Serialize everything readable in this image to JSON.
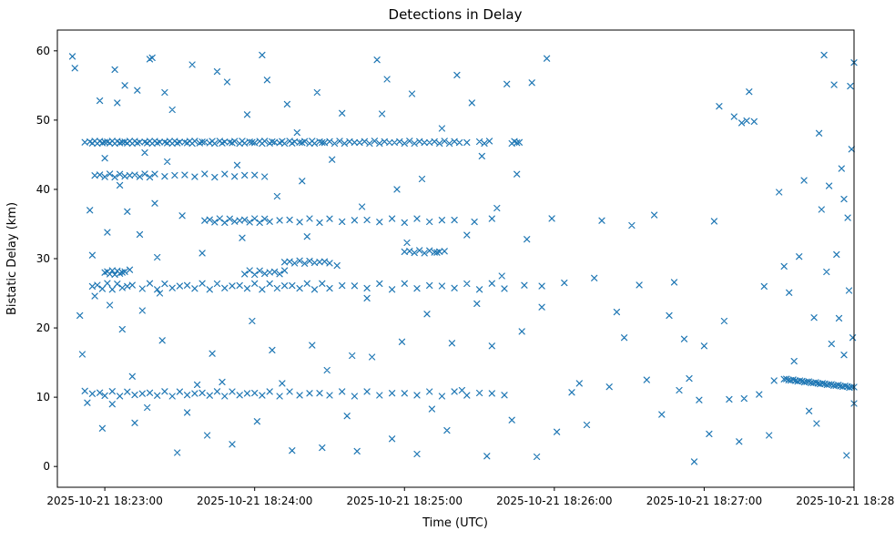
{
  "figure": {
    "background": "#ffffff"
  },
  "chart_data": {
    "type": "scatter",
    "title": "Detections in Delay",
    "xlabel": "Time (UTC)",
    "ylabel": "Bistatic Delay (km)",
    "marker": "x",
    "marker_color": "#1f77b4",
    "grid": false,
    "legend_position": "none",
    "x_axis_note": "seconds relative to 2025-10-21 18:23:00 UTC",
    "xlim_seconds": [
      -19,
      300
    ],
    "x_ticks": [
      {
        "t": 0,
        "label": "2025-10-21 18:23:00"
      },
      {
        "t": 60,
        "label": "2025-10-21 18:24:00"
      },
      {
        "t": 120,
        "label": "2025-10-21 18:25:00"
      },
      {
        "t": 180,
        "label": "2025-10-21 18:26:00"
      },
      {
        "t": 240,
        "label": "2025-10-21 18:27:00"
      },
      {
        "t": 300,
        "label": "2025-10-21 18:28:00"
      }
    ],
    "ylim": [
      -3,
      63
    ],
    "y_ticks": [
      0,
      10,
      20,
      30,
      40,
      50,
      60
    ],
    "clusters": [
      {
        "name": "band-46.8km",
        "y": 46.8,
        "jitter": 0.18,
        "x": [
          -8,
          -6,
          -5,
          -4,
          -3,
          -2,
          -1,
          0,
          1,
          2,
          3,
          4,
          5,
          6,
          7,
          8,
          9,
          10,
          11,
          12,
          13,
          14,
          16,
          17,
          18,
          19,
          20,
          21,
          22,
          24,
          25,
          26,
          27,
          28,
          29,
          30,
          32,
          33,
          34,
          35,
          36,
          38,
          39,
          40,
          42,
          43,
          44,
          46,
          47,
          48,
          50,
          51,
          52,
          54,
          55,
          56,
          58,
          59,
          60,
          62,
          63,
          64,
          66,
          67,
          68,
          70,
          71,
          72,
          74,
          75,
          76,
          78,
          79,
          80,
          82,
          83,
          84,
          86,
          87,
          88,
          90,
          92,
          94,
          96,
          98,
          100,
          102,
          104,
          106,
          108,
          110,
          112,
          114,
          116,
          118,
          120,
          122,
          124,
          126,
          128,
          130,
          132,
          134,
          136,
          138,
          140,
          142,
          145,
          150,
          152,
          154,
          163,
          164,
          165,
          166
        ]
      },
      {
        "name": "band-42km",
        "y": 42.0,
        "jitter": 0.25,
        "x": [
          -4,
          -2,
          0,
          2,
          4,
          6,
          8,
          10,
          12,
          14,
          16,
          18,
          20,
          24,
          28,
          32,
          36,
          40,
          44,
          48,
          52,
          56,
          60,
          64
        ]
      },
      {
        "name": "band-35.5km",
        "y": 35.5,
        "jitter": 0.3,
        "x": [
          40,
          42,
          44,
          46,
          48,
          50,
          52,
          54,
          56,
          58,
          60,
          62,
          64,
          66,
          70,
          74,
          78,
          82,
          86,
          90,
          95,
          100,
          105,
          110,
          115,
          120,
          125,
          130,
          135,
          140,
          148,
          155
        ]
      },
      {
        "name": "band-26km",
        "y": 26.0,
        "jitter": 0.45,
        "x": [
          -5,
          -3,
          -1,
          1,
          3,
          5,
          7,
          9,
          11,
          15,
          18,
          21,
          24,
          27,
          30,
          33,
          36,
          39,
          42,
          45,
          48,
          51,
          54,
          57,
          60,
          63,
          66,
          69,
          72,
          75,
          78,
          81,
          84,
          87,
          90,
          95,
          100,
          105,
          110,
          115,
          120,
          125,
          130,
          135,
          140,
          145,
          150,
          155,
          160,
          168,
          175
        ]
      },
      {
        "name": "band-28km",
        "y": 28.0,
        "jitter": 0.3,
        "x": [
          0,
          1,
          2,
          3,
          4,
          5,
          6,
          7,
          8,
          56,
          58,
          60,
          62,
          64,
          66,
          68,
          70,
          72
        ]
      },
      {
        "name": "band-29.5km",
        "y": 29.5,
        "jitter": 0.2,
        "x": [
          72,
          74,
          76,
          78,
          80,
          82,
          84,
          86,
          88,
          90
        ]
      },
      {
        "name": "band-31km",
        "y": 31.0,
        "jitter": 0.2,
        "x": [
          120,
          122,
          124,
          126,
          128,
          130,
          132,
          134,
          136
        ]
      },
      {
        "name": "band-10.5km",
        "y": 10.5,
        "jitter": 0.35,
        "x": [
          -5,
          -2,
          0,
          3,
          6,
          9,
          12,
          15,
          18,
          21,
          24,
          27,
          30,
          33,
          36,
          39,
          42,
          45,
          48,
          51,
          54,
          57,
          60,
          63,
          66,
          70,
          74,
          78,
          82,
          86,
          90,
          95,
          100,
          105,
          110,
          115,
          120,
          125,
          130,
          135,
          140,
          145,
          150,
          155,
          160
        ]
      }
    ],
    "track": {
      "name": "descending-track",
      "x_start": 272,
      "x_end": 300,
      "y_start": 12.6,
      "y_end": 11.4,
      "count": 32,
      "jitter": 0.08
    },
    "scatter_points": [
      [
        -13,
        59.2
      ],
      [
        -12,
        57.5
      ],
      [
        -10,
        21.8
      ],
      [
        -9,
        16.2
      ],
      [
        -8,
        10.9
      ],
      [
        -7,
        9.2
      ],
      [
        -6,
        37.0
      ],
      [
        -5,
        30.5
      ],
      [
        -4,
        24.6
      ],
      [
        -2,
        52.8
      ],
      [
        -1,
        5.5
      ],
      [
        0,
        44.5
      ],
      [
        1,
        33.8
      ],
      [
        2,
        23.3
      ],
      [
        3,
        9.0
      ],
      [
        4,
        57.3
      ],
      [
        5,
        52.5
      ],
      [
        6,
        40.6
      ],
      [
        7,
        19.8
      ],
      [
        8,
        55.0
      ],
      [
        9,
        36.8
      ],
      [
        10,
        28.4
      ],
      [
        11,
        13.0
      ],
      [
        12,
        6.3
      ],
      [
        13,
        54.3
      ],
      [
        14,
        33.5
      ],
      [
        15,
        22.5
      ],
      [
        16,
        45.3
      ],
      [
        17,
        8.5
      ],
      [
        18,
        58.8
      ],
      [
        19,
        59.0
      ],
      [
        20,
        38.0
      ],
      [
        21,
        30.2
      ],
      [
        22,
        25.0
      ],
      [
        23,
        18.2
      ],
      [
        24,
        54.0
      ],
      [
        25,
        44.0
      ],
      [
        27,
        51.5
      ],
      [
        29,
        2.0
      ],
      [
        31,
        36.2
      ],
      [
        33,
        7.8
      ],
      [
        35,
        58.0
      ],
      [
        37,
        11.8
      ],
      [
        39,
        30.8
      ],
      [
        41,
        4.5
      ],
      [
        43,
        16.3
      ],
      [
        45,
        57.0
      ],
      [
        47,
        12.2
      ],
      [
        49,
        55.5
      ],
      [
        51,
        3.2
      ],
      [
        53,
        43.5
      ],
      [
        55,
        33.0
      ],
      [
        57,
        50.8
      ],
      [
        59,
        21.0
      ],
      [
        61,
        6.5
      ],
      [
        63,
        59.4
      ],
      [
        65,
        55.8
      ],
      [
        67,
        16.8
      ],
      [
        69,
        39.0
      ],
      [
        71,
        12.0
      ],
      [
        73,
        52.3
      ],
      [
        75,
        2.3
      ],
      [
        77,
        48.2
      ],
      [
        79,
        41.2
      ],
      [
        81,
        33.2
      ],
      [
        83,
        17.5
      ],
      [
        85,
        54.0
      ],
      [
        87,
        2.7
      ],
      [
        89,
        13.9
      ],
      [
        91,
        44.3
      ],
      [
        93,
        29.0
      ],
      [
        95,
        51.0
      ],
      [
        97,
        7.3
      ],
      [
        99,
        16.0
      ],
      [
        101,
        2.2
      ],
      [
        103,
        37.5
      ],
      [
        105,
        24.3
      ],
      [
        107,
        15.8
      ],
      [
        109,
        58.7
      ],
      [
        111,
        50.9
      ],
      [
        113,
        55.9
      ],
      [
        115,
        4.0
      ],
      [
        117,
        40.0
      ],
      [
        119,
        18.0
      ],
      [
        121,
        32.3
      ],
      [
        123,
        53.8
      ],
      [
        125,
        1.8
      ],
      [
        127,
        41.5
      ],
      [
        129,
        22.0
      ],
      [
        131,
        8.3
      ],
      [
        133,
        30.9
      ],
      [
        135,
        48.8
      ],
      [
        137,
        5.2
      ],
      [
        139,
        17.8
      ],
      [
        141,
        56.5
      ],
      [
        143,
        11.0
      ],
      [
        145,
        33.4
      ],
      [
        147,
        52.5
      ],
      [
        149,
        23.5
      ],
      [
        151,
        44.8
      ],
      [
        153,
        1.5
      ],
      [
        155,
        17.4
      ],
      [
        157,
        37.3
      ],
      [
        159,
        27.5
      ],
      [
        161,
        55.2
      ],
      [
        163,
        6.7
      ],
      [
        165,
        42.2
      ],
      [
        167,
        19.5
      ],
      [
        169,
        32.8
      ],
      [
        171,
        55.4
      ],
      [
        173,
        1.4
      ],
      [
        175,
        23.0
      ],
      [
        177,
        58.9
      ],
      [
        179,
        35.8
      ],
      [
        181,
        5.0
      ],
      [
        184,
        26.5
      ],
      [
        187,
        10.7
      ],
      [
        190,
        12.0
      ],
      [
        193,
        6.0
      ],
      [
        196,
        27.2
      ],
      [
        199,
        35.5
      ],
      [
        202,
        11.5
      ],
      [
        205,
        22.3
      ],
      [
        208,
        18.6
      ],
      [
        211,
        34.8
      ],
      [
        214,
        26.2
      ],
      [
        217,
        12.5
      ],
      [
        220,
        36.3
      ],
      [
        223,
        7.5
      ],
      [
        226,
        21.8
      ],
      [
        228,
        26.6
      ],
      [
        230,
        11.0
      ],
      [
        232,
        18.4
      ],
      [
        234,
        12.7
      ],
      [
        236,
        0.7
      ],
      [
        238,
        9.6
      ],
      [
        240,
        17.4
      ],
      [
        242,
        4.7
      ],
      [
        244,
        35.4
      ],
      [
        246,
        52.0
      ],
      [
        248,
        21.0
      ],
      [
        250,
        9.7
      ],
      [
        252,
        50.5
      ],
      [
        254,
        3.6
      ],
      [
        255,
        49.6
      ],
      [
        256,
        9.8
      ],
      [
        257,
        49.9
      ],
      [
        258,
        54.1
      ],
      [
        260,
        49.8
      ],
      [
        262,
        10.4
      ],
      [
        264,
        26.0
      ],
      [
        266,
        4.5
      ],
      [
        268,
        12.4
      ],
      [
        270,
        39.6
      ],
      [
        272,
        28.9
      ],
      [
        274,
        25.1
      ],
      [
        276,
        15.2
      ],
      [
        278,
        30.3
      ],
      [
        280,
        41.3
      ],
      [
        282,
        8.0
      ],
      [
        284,
        21.5
      ],
      [
        285,
        6.2
      ],
      [
        286,
        48.1
      ],
      [
        287,
        37.1
      ],
      [
        288,
        59.4
      ],
      [
        289,
        28.1
      ],
      [
        290,
        40.5
      ],
      [
        291,
        17.7
      ],
      [
        292,
        55.1
      ],
      [
        293,
        30.6
      ],
      [
        294,
        21.4
      ],
      [
        295,
        43.0
      ],
      [
        296,
        38.6
      ],
      [
        296,
        16.1
      ],
      [
        297,
        1.6
      ],
      [
        297.5,
        35.9
      ],
      [
        298,
        25.4
      ],
      [
        298.5,
        54.9
      ],
      [
        299,
        45.8
      ],
      [
        299.5,
        18.6
      ],
      [
        300,
        58.3
      ],
      [
        300,
        9.1
      ]
    ]
  }
}
